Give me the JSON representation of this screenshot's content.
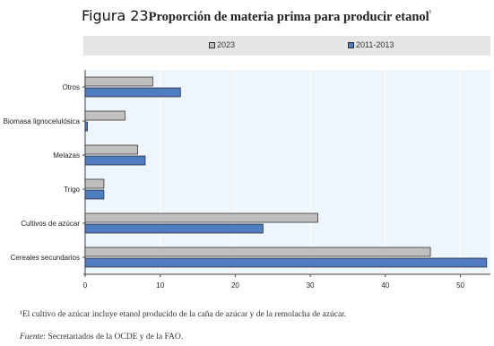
{
  "header": {
    "figure_label": "Figura 23",
    "title": "Proporción de materia prima para producir etanol",
    "title_marker": "¹"
  },
  "legend": {
    "items": [
      {
        "label": "2023",
        "color": "#bfbfbf"
      },
      {
        "label": "2011-2013",
        "color": "#4f7bbf"
      }
    ]
  },
  "footnotes": {
    "note": "¹El cultivo de azúcar incluye etanol producido de la caña de azúcar y de la remolacha de azúcar.",
    "source_label": "Fuente",
    "source_text": ": Secretariados de la OCDE y de la FAO."
  },
  "chart_data": {
    "type": "bar",
    "orientation": "horizontal",
    "title": "Proporción de materia prima para producir etanol",
    "categories": [
      "Otros",
      "Biomasa lignocelulósica",
      "Melazas",
      "Trigo",
      "Cultivos de azúcar",
      "Cereales secundarios"
    ],
    "series": [
      {
        "name": "2023",
        "color": "#bfbfbf",
        "values": [
          9,
          5.3,
          7,
          2.5,
          31,
          46
        ]
      },
      {
        "name": "2011-2013",
        "color": "#4f7bbf",
        "values": [
          12.7,
          0.3,
          8,
          2.5,
          23.7,
          53.5
        ]
      }
    ],
    "xlim": [
      0,
      54
    ],
    "xticks": [
      0,
      10,
      20,
      30,
      40,
      50
    ],
    "legend_position": "top",
    "plot_background": "#eef5fb"
  }
}
